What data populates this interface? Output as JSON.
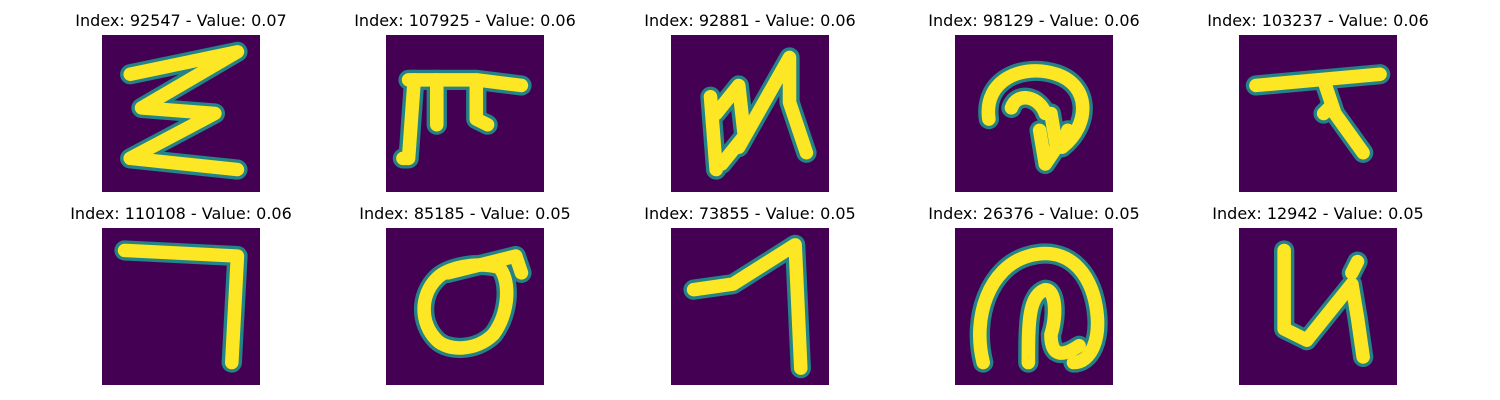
{
  "figure": {
    "background_color": "#440154",
    "stroke_color": "#fde725",
    "edge_color": "#21918c",
    "panels": [
      {
        "title": "Index: 92547 - Value: 0.07",
        "glyph": "sigma-like zigzag"
      },
      {
        "title": "Index: 107925 - Value: 0.06",
        "glyph": "pi-like bar with legs"
      },
      {
        "title": "Index: 92881 - Value: 0.06",
        "glyph": "N-like"
      },
      {
        "title": "Index: 98129 - Value: 0.06",
        "glyph": "hook with arrow"
      },
      {
        "title": "Index: 103237 - Value: 0.06",
        "glyph": "T-like"
      },
      {
        "title": "Index: 110108 - Value: 0.06",
        "glyph": "reversed L"
      },
      {
        "title": "Index: 85185 - Value: 0.05",
        "glyph": "sigma-like loop"
      },
      {
        "title": "Index: 73855 - Value: 0.05",
        "glyph": "hook"
      },
      {
        "title": "Index: 26376 - Value: 0.05",
        "glyph": "spiral loop"
      },
      {
        "title": "Index: 12942 - Value: 0.05",
        "glyph": "u-like"
      }
    ]
  }
}
